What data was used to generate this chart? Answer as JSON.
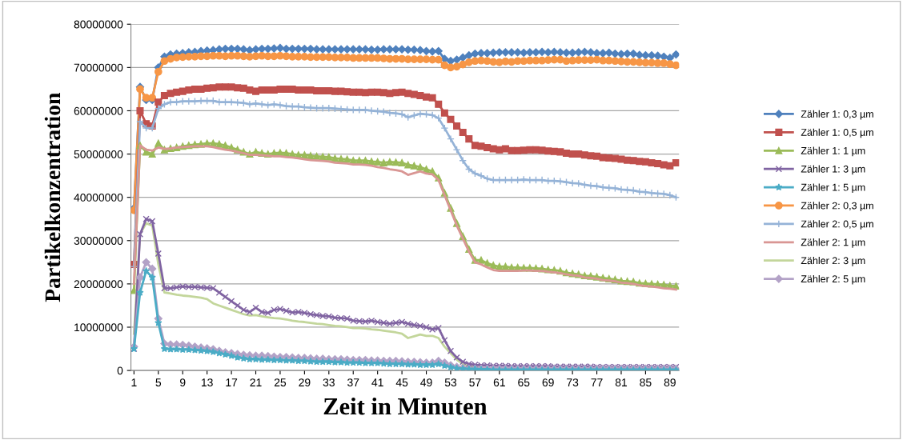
{
  "chart_data": {
    "type": "line",
    "xlabel": "Zeit in Minuten",
    "ylabel": "Partikelkonzentration",
    "categories": [
      "1",
      null,
      null,
      null,
      "5",
      null,
      null,
      null,
      "9",
      null,
      null,
      null,
      "13",
      null,
      null,
      null,
      "17",
      null,
      null,
      null,
      "21",
      null,
      null,
      null,
      "25",
      null,
      null,
      null,
      "29",
      null,
      null,
      null,
      "33",
      null,
      null,
      null,
      "37",
      null,
      null,
      null,
      "41",
      null,
      null,
      null,
      "45",
      null,
      null,
      null,
      "49",
      null,
      null,
      null,
      "53",
      null,
      null,
      null,
      "57",
      null,
      null,
      null,
      "61",
      null,
      null,
      null,
      "65",
      null,
      null,
      null,
      "69",
      null,
      null,
      null,
      "73",
      null,
      null,
      null,
      "77",
      null,
      null,
      null,
      "81",
      null,
      null,
      null,
      "85",
      null,
      null,
      null,
      "89",
      null
    ],
    "ylim": [
      0,
      80000000
    ],
    "yticks": [
      0,
      10000000,
      20000000,
      30000000,
      40000000,
      50000000,
      60000000,
      70000000,
      80000000
    ],
    "grid": "y",
    "legend": "right",
    "series": [
      {
        "name": "Zähler 1: 0,3 µm",
        "color": "#4f81bd",
        "marker": "diamond",
        "values": [
          37500000.0,
          65500000.0,
          62500000.0,
          62500000.0,
          70000000.0,
          72500000.0,
          73000000.0,
          73200000.0,
          73300000.0,
          73500000.0,
          73600000.0,
          73800000.0,
          73900000.0,
          74000000.0,
          74200000.0,
          74300000.0,
          74300000.0,
          74300000.0,
          74200000.0,
          74000000.0,
          74200000.0,
          74300000.0,
          74300000.0,
          74400000.0,
          74500000.0,
          74300000.0,
          74300000.0,
          74300000.0,
          74300000.0,
          74300000.0,
          74200000.0,
          74200000.0,
          74200000.0,
          74200000.0,
          74200000.0,
          74200000.0,
          74200000.0,
          74200000.0,
          74200000.0,
          74100000.0,
          74100000.0,
          74200000.0,
          74200000.0,
          74200000.0,
          74200000.0,
          74100000.0,
          74100000.0,
          74000000.0,
          73800000.0,
          73700000.0,
          73800000.0,
          72000000.0,
          71500000.0,
          71800000.0,
          72300000.0,
          72800000.0,
          73200000.0,
          73300000.0,
          73300000.0,
          73400000.0,
          73500000.0,
          73500000.0,
          73500000.0,
          73500000.0,
          73400000.0,
          73500000.0,
          73500000.0,
          73600000.0,
          73500000.0,
          73600000.0,
          73500000.0,
          73400000.0,
          73400000.0,
          73500000.0,
          73600000.0,
          73500000.0,
          73300000.0,
          73300000.0,
          73400000.0,
          73200000.0,
          73100000.0,
          73200000.0,
          73200000.0,
          72900000.0,
          72800000.0,
          72800000.0,
          72700000.0,
          72500000.0,
          72200000.0,
          73000000.0
        ]
      },
      {
        "name": "Zähler 1: 0,5 µm",
        "color": "#c0504d",
        "marker": "square",
        "values": [
          24500000.0,
          60000000.0,
          57000000.0,
          56500000.0,
          62000000.0,
          63500000.0,
          64000000.0,
          64300000.0,
          64500000.0,
          64800000.0,
          65000000.0,
          65000000.0,
          65200000.0,
          65300000.0,
          65500000.0,
          65500000.0,
          65500000.0,
          65300000.0,
          65200000.0,
          64800000.0,
          64500000.0,
          64800000.0,
          64800000.0,
          64800000.0,
          65000000.0,
          65000000.0,
          65000000.0,
          64800000.0,
          64800000.0,
          64800000.0,
          64600000.0,
          64600000.0,
          64600000.0,
          64500000.0,
          64500000.0,
          64400000.0,
          64300000.0,
          64300000.0,
          64200000.0,
          64300000.0,
          64300000.0,
          64200000.0,
          64000000.0,
          64200000.0,
          64300000.0,
          64000000.0,
          63800000.0,
          63500000.0,
          63200000.0,
          63000000.0,
          61500000.0,
          59500000.0,
          58000000.0,
          56500000.0,
          55000000.0,
          53500000.0,
          52000000.0,
          51800000.0,
          51500000.0,
          51200000.0,
          51000000.0,
          51200000.0,
          50800000.0,
          50800000.0,
          50900000.0,
          51000000.0,
          51000000.0,
          50900000.0,
          50700000.0,
          50600000.0,
          50500000.0,
          50200000.0,
          50000000.0,
          50000000.0,
          49800000.0,
          49600000.0,
          49500000.0,
          49200000.0,
          49100000.0,
          49000000.0,
          48800000.0,
          48600000.0,
          48500000.0,
          48300000.0,
          48200000.0,
          48000000.0,
          47800000.0,
          47500000.0,
          47300000.0,
          48000000.0
        ]
      },
      {
        "name": "Zähler 1: 1 µm",
        "color": "#9bbb59",
        "marker": "triangle",
        "values": [
          18500000.0,
          52000000.0,
          50500000.0,
          50000000.0,
          52500000.0,
          51000000.0,
          51300000.0,
          51500000.0,
          51800000.0,
          52000000.0,
          52200000.0,
          52300000.0,
          52500000.0,
          52500000.0,
          52300000.0,
          52000000.0,
          51500000.0,
          51000000.0,
          50500000.0,
          50000000.0,
          50500000.0,
          50200000.0,
          50000000.0,
          50200000.0,
          50300000.0,
          50200000.0,
          50000000.0,
          49800000.0,
          49800000.0,
          49600000.0,
          49500000.0,
          49400000.0,
          49300000.0,
          49000000.0,
          48900000.0,
          48800000.0,
          48500000.0,
          48500000.0,
          48500000.0,
          48300000.0,
          48200000.0,
          48000000.0,
          48200000.0,
          48100000.0,
          48000000.0,
          47500000.0,
          47300000.0,
          47000000.0,
          46500000.0,
          46000000.0,
          44500000.0,
          41000000.0,
          37500000.0,
          34000000.0,
          31000000.0,
          28000000.0,
          25500000.0,
          25500000.0,
          24800000.0,
          24300000.0,
          24000000.0,
          24000000.0,
          23800000.0,
          23800000.0,
          23700000.0,
          23700000.0,
          23600000.0,
          23500000.0,
          23300000.0,
          23200000.0,
          23000000.0,
          22600000.0,
          22400000.0,
          22200000.0,
          21900000.0,
          21800000.0,
          21600000.0,
          21400000.0,
          21200000.0,
          21000000.0,
          20700000.0,
          20600000.0,
          20500000.0,
          20200000.0,
          20100000.0,
          20000000.0,
          19900000.0,
          19800000.0,
          19600000.0,
          19500000.0
        ]
      },
      {
        "name": "Zähler 1: 3 µm",
        "color": "#8064a2",
        "marker": "cross",
        "values": [
          5000000.0,
          31500000.0,
          35000000.0,
          34500000.0,
          27000000.0,
          19000000.0,
          19000000.0,
          19200000.0,
          19400000.0,
          19300000.0,
          19300000.0,
          19200000.0,
          19100000.0,
          19000000.0,
          18000000.0,
          17000000.0,
          16000000.0,
          15000000.0,
          14000000.0,
          13500000.0,
          14500000.0,
          13500000.0,
          13300000.0,
          14000000.0,
          14200000.0,
          13800000.0,
          13400000.0,
          13500000.0,
          13300000.0,
          13000000.0,
          12800000.0,
          12600000.0,
          12500000.0,
          12200000.0,
          12100000.0,
          12000000.0,
          11500000.0,
          11400000.0,
          11300000.0,
          11500000.0,
          11200000.0,
          11000000.0,
          10800000.0,
          11000000.0,
          11200000.0,
          10800000.0,
          10500000.0,
          10300000.0,
          10000000.0,
          9500000.0,
          9800000.0,
          7000000.0,
          4500000.0,
          3000000.0,
          2000000.0,
          1500000.0,
          1300000.0,
          1200000.0,
          1200000.0,
          1100000.0,
          1100000.0,
          1100000.0,
          1000000.0,
          1000000.0,
          1000000.0,
          1000000.0,
          1000000.0,
          1000000.0,
          1000000.0,
          900000.0,
          900000.0,
          900000.0,
          900000.0,
          900000.0,
          900000.0,
          900000.0,
          800000.0,
          800000.0,
          800000.0,
          800000.0,
          800000.0,
          800000.0,
          800000.0,
          800000.0,
          800000.0,
          800000.0,
          800000.0,
          800000.0,
          800000.0,
          800000.0
        ]
      },
      {
        "name": "Zähler 1: 5 µm",
        "color": "#4bacc6",
        "marker": "star",
        "values": [
          5000000.0,
          18000000.0,
          23000000.0,
          21500000.0,
          11000000.0,
          5000000.0,
          4900000.0,
          4900000.0,
          4800000.0,
          4800000.0,
          4700000.0,
          4600000.0,
          4500000.0,
          4300000.0,
          4000000.0,
          3700000.0,
          3400000.0,
          3000000.0,
          2800000.0,
          2600000.0,
          2600000.0,
          2500000.0,
          2500000.0,
          2400000.0,
          2400000.0,
          2300000.0,
          2300000.0,
          2200000.0,
          2200000.0,
          2100000.0,
          2000000.0,
          2000000.0,
          2000000.0,
          1900000.0,
          1900000.0,
          1800000.0,
          1800000.0,
          1800000.0,
          1700000.0,
          1700000.0,
          1700000.0,
          1600000.0,
          1500000.0,
          1500000.0,
          1500000.0,
          1400000.0,
          1400000.0,
          1300000.0,
          1300000.0,
          1300000.0,
          1500000.0,
          1100000.0,
          800000.0,
          500000.0,
          400000.0,
          300000.0,
          300000.0,
          200000.0,
          200000.0,
          100000.0,
          100000.0,
          100000.0,
          100000.0,
          100000.0,
          100000.0,
          100000.0,
          100000.0,
          100000.0,
          100000.0,
          100000.0,
          100000.0,
          100000.0,
          100000.0,
          100000.0,
          100000.0,
          100000.0,
          100000.0,
          100000.0,
          100000.0,
          100000.0,
          100000.0,
          100000.0,
          100000.0,
          100000.0,
          100000.0,
          100000.0,
          100000.0,
          100000.0,
          100000.0,
          100000.0
        ]
      },
      {
        "name": "Zähler 2: 0,3 µm",
        "color": "#f79646",
        "marker": "circle",
        "values": [
          37000000.0,
          65000000.0,
          63000000.0,
          63000000.0,
          69000000.0,
          71500000.0,
          72000000.0,
          72300000.0,
          72400000.0,
          72500000.0,
          72500000.0,
          72600000.0,
          72600000.0,
          72700000.0,
          72700000.0,
          72600000.0,
          72700000.0,
          72700000.0,
          72600000.0,
          72500000.0,
          72600000.0,
          72700000.0,
          72600000.0,
          72600000.0,
          72700000.0,
          72600000.0,
          72500000.0,
          72500000.0,
          72500000.0,
          72400000.0,
          72400000.0,
          72400000.0,
          72400000.0,
          72300000.0,
          72300000.0,
          72300000.0,
          72200000.0,
          72200000.0,
          72200000.0,
          72200000.0,
          72200000.0,
          72100000.0,
          72000000.0,
          72000000.0,
          72000000.0,
          71900000.0,
          71900000.0,
          71900000.0,
          71900000.0,
          71800000.0,
          71800000.0,
          70500000.0,
          70000000.0,
          70200000.0,
          70700000.0,
          71200000.0,
          71500000.0,
          71600000.0,
          71500000.0,
          71300000.0,
          71200000.0,
          71400000.0,
          71300000.0,
          71500000.0,
          71500000.0,
          71600000.0,
          71600000.0,
          71600000.0,
          71700000.0,
          71800000.0,
          71800000.0,
          71500000.0,
          71600000.0,
          71700000.0,
          71700000.0,
          71700000.0,
          71800000.0,
          71600000.0,
          71600000.0,
          71500000.0,
          71400000.0,
          71300000.0,
          71300000.0,
          71200000.0,
          71100000.0,
          71100000.0,
          71000000.0,
          71000000.0,
          70800000.0,
          70500000.0
        ]
      },
      {
        "name": "Zähler 2: 0,5 µm",
        "color": "#95b3d7",
        "marker": "plus",
        "values": [
          24000000.0,
          57500000.0,
          56000000.0,
          56000000.0,
          60500000.0,
          61500000.0,
          62000000.0,
          62000000.0,
          62200000.0,
          62200000.0,
          62200000.0,
          62300000.0,
          62300000.0,
          62300000.0,
          62000000.0,
          62000000.0,
          62000000.0,
          61900000.0,
          61800000.0,
          61500000.0,
          61700000.0,
          61500000.0,
          61300000.0,
          61500000.0,
          61300000.0,
          61100000.0,
          61000000.0,
          61000000.0,
          60800000.0,
          60700000.0,
          60600000.0,
          60600000.0,
          60600000.0,
          60500000.0,
          60400000.0,
          60300000.0,
          60200000.0,
          60200000.0,
          60200000.0,
          60000000.0,
          59900000.0,
          59800000.0,
          59500000.0,
          59400000.0,
          59200000.0,
          58500000.0,
          58900000.0,
          59300000.0,
          59200000.0,
          59000000.0,
          58300000.0,
          56000000.0,
          53500000.0,
          51000000.0,
          48500000.0,
          46500000.0,
          45500000.0,
          45000000.0,
          44300000.0,
          44000000.0,
          44000000.0,
          44000000.0,
          44000000.0,
          44000000.0,
          44100000.0,
          44000000.0,
          44000000.0,
          44000000.0,
          43800000.0,
          43800000.0,
          43700000.0,
          43500000.0,
          43300000.0,
          43200000.0,
          42900000.0,
          42700000.0,
          42600000.0,
          42300000.0,
          42200000.0,
          42100000.0,
          41800000.0,
          41700000.0,
          41600000.0,
          41300000.0,
          41200000.0,
          41000000.0,
          40900000.0,
          40800000.0,
          40500000.0,
          40000000.0
        ]
      },
      {
        "name": "Zähler 2: 1 µm",
        "color": "#d99694",
        "marker": "none",
        "values": [
          20000000.0,
          52000000.0,
          51000000.0,
          50800000.0,
          51500000.0,
          51200000.0,
          51300000.0,
          51500000.0,
          51600000.0,
          51700000.0,
          51800000.0,
          51800000.0,
          51800000.0,
          51600000.0,
          51300000.0,
          51000000.0,
          50800000.0,
          50500000.0,
          50200000.0,
          49800000.0,
          49800000.0,
          49700000.0,
          49600000.0,
          49500000.0,
          49500000.0,
          49300000.0,
          49200000.0,
          49000000.0,
          48800000.0,
          48600000.0,
          48500000.0,
          48400000.0,
          48300000.0,
          48000000.0,
          47900000.0,
          47800000.0,
          47600000.0,
          47600000.0,
          47500000.0,
          47300000.0,
          47000000.0,
          46800000.0,
          46500000.0,
          46300000.0,
          46000000.0,
          45200000.0,
          45600000.0,
          46000000.0,
          45500000.0,
          45300000.0,
          44000000.0,
          40500000.0,
          37000000.0,
          33500000.0,
          30500000.0,
          27500000.0,
          25000000.0,
          24500000.0,
          23800000.0,
          23200000.0,
          23000000.0,
          23000000.0,
          23000000.0,
          23000000.0,
          23100000.0,
          23100000.0,
          23000000.0,
          23000000.0,
          22800000.0,
          22700000.0,
          22500000.0,
          22200000.0,
          22000000.0,
          21900000.0,
          21500000.0,
          21400000.0,
          21200000.0,
          20900000.0,
          20800000.0,
          20600000.0,
          20300000.0,
          20200000.0,
          20000000.0,
          19700000.0,
          19500000.0,
          19400000.0,
          19200000.0,
          19000000.0,
          18900000.0,
          18700000.0
        ]
      },
      {
        "name": "Zähler 2: 3 µm",
        "color": "#c3d69b",
        "marker": "none",
        "values": [
          8500000.0,
          31500000.0,
          34000000.0,
          33500000.0,
          24500000.0,
          18000000.0,
          17800000.0,
          17500000.0,
          17300000.0,
          17200000.0,
          17000000.0,
          16800000.0,
          16500000.0,
          15500000.0,
          15000000.0,
          14500000.0,
          14000000.0,
          13500000.0,
          13000000.0,
          12700000.0,
          12800000.0,
          12500000.0,
          12300000.0,
          12100000.0,
          12000000.0,
          11800000.0,
          11500000.0,
          11300000.0,
          11200000.0,
          11000000.0,
          10800000.0,
          10700000.0,
          10500000.0,
          10300000.0,
          10200000.0,
          10000000.0,
          9800000.0,
          9800000.0,
          9700000.0,
          9500000.0,
          9400000.0,
          9200000.0,
          9000000.0,
          8800000.0,
          8500000.0,
          7500000.0,
          7900000.0,
          8300000.0,
          8000000.0,
          8000000.0,
          7500000.0,
          5500000.0,
          4000000.0,
          2500000.0,
          1500000.0,
          1000000.0,
          800000.0,
          600000.0,
          500000.0,
          null,
          null,
          null,
          null,
          null,
          null,
          null,
          null,
          null,
          null,
          null,
          null,
          null,
          null,
          null,
          null,
          null,
          null,
          null,
          null,
          null,
          null,
          null,
          null,
          null,
          null,
          null,
          null,
          null,
          null,
          null
        ]
      },
      {
        "name": "Zähler 2: 5 µm",
        "color": "#b3a2c7",
        "marker": "diamond",
        "values": [
          5500000.0,
          21500000.0,
          25000000.0,
          23500000.0,
          12000000.0,
          6200000.0,
          6000000.0,
          6000000.0,
          5900000.0,
          5700000.0,
          5500000.0,
          5300000.0,
          5100000.0,
          4900000.0,
          4500000.0,
          4200000.0,
          4000000.0,
          3800000.0,
          3600000.0,
          3500000.0,
          3400000.0,
          3400000.0,
          3300000.0,
          3200000.0,
          3100000.0,
          3100000.0,
          3000000.0,
          2900000.0,
          2900000.0,
          2800000.0,
          2700000.0,
          2700000.0,
          2600000.0,
          2600000.0,
          2600000.0,
          2500000.0,
          2400000.0,
          2400000.0,
          2400000.0,
          2300000.0,
          2300000.0,
          2200000.0,
          2200000.0,
          2200000.0,
          2100000.0,
          2000000.0,
          2000000.0,
          1900000.0,
          1800000.0,
          1800000.0,
          2200000.0,
          1800000.0,
          1200000.0,
          800000.0,
          600000.0,
          400000.0,
          400000.0,
          400000.0,
          400000.0,
          400000.0,
          400000.0,
          400000.0,
          400000.0,
          400000.0,
          400000.0,
          400000.0,
          400000.0,
          400000.0,
          400000.0,
          400000.0,
          400000.0,
          400000.0,
          400000.0,
          400000.0,
          400000.0,
          400000.0,
          400000.0,
          400000.0,
          400000.0,
          400000.0,
          400000.0,
          400000.0,
          400000.0,
          400000.0,
          400000.0,
          400000.0,
          400000.0,
          400000.0,
          400000.0,
          400000.0
        ]
      }
    ]
  }
}
